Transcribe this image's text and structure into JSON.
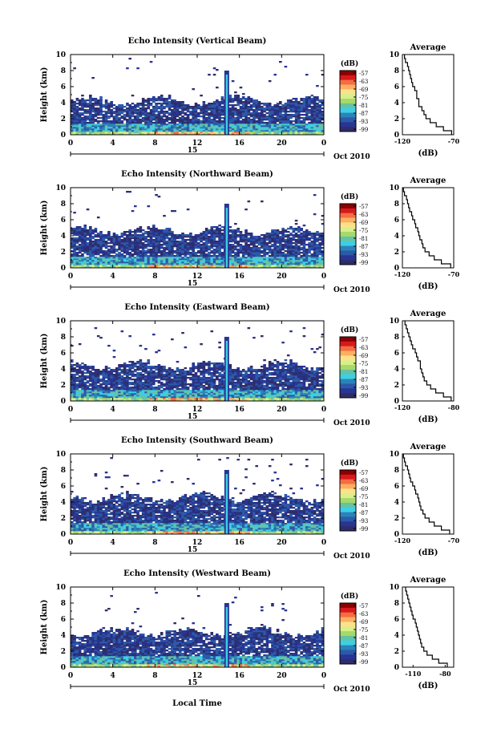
{
  "shared": {
    "colorbar_unit": "(dB)",
    "colorbar_ticks": [
      "-57",
      "-63",
      "-69",
      "-75",
      "-81",
      "-87",
      "-93",
      "-99"
    ],
    "colorbar_colors": [
      "#8b0000",
      "#d7191c",
      "#f46d43",
      "#fdae61",
      "#fee08b",
      "#d9ef8b",
      "#a6d96a",
      "#66c2a5",
      "#3ccfe6",
      "#2b83ba",
      "#2c5aa8",
      "#283593",
      "#2e2d6b"
    ],
    "date_label": "Oct 2010",
    "date_marker": "15",
    "xlabel": "Local Time",
    "avg_title": "Average",
    "avg_xlabel": "(dB)",
    "ylabel": "Height (km)"
  },
  "chart_data": [
    {
      "type": "heatmap",
      "title": "Echo Intensity (Vertical Beam)",
      "x_ticks": [
        "0",
        "4",
        "8",
        "12",
        "16",
        "20",
        "0"
      ],
      "y_ticks": [
        "0",
        "2",
        "4",
        "6",
        "8",
        "10"
      ],
      "xlim": [
        0,
        24
      ],
      "ylim": [
        0,
        10
      ],
      "spike_time_h": 14.8,
      "cloud_top_km": 4.2,
      "average_profile": {
        "x_ticks": [
          "-120",
          "-70"
        ],
        "xlim": [
          -120,
          -70
        ],
        "heights_km": [
          0,
          0.5,
          1,
          1.5,
          2,
          2.5,
          3,
          3.5,
          4,
          4.5,
          5,
          5.5,
          6,
          6.5,
          7,
          7.5,
          8,
          8.5,
          9,
          9.5
        ],
        "values_db": [
          -72,
          -80,
          -87,
          -93,
          -97,
          -99,
          -101,
          -104,
          -104,
          -106,
          -106,
          -108,
          -110,
          -111,
          -112,
          -113,
          -114,
          -115,
          -117,
          -118
        ]
      }
    },
    {
      "type": "heatmap",
      "title": "Echo Intensity (Northward Beam)",
      "x_ticks": [
        "0",
        "4",
        "8",
        "12",
        "16",
        "20",
        "0"
      ],
      "y_ticks": [
        "0",
        "2",
        "4",
        "6",
        "8",
        "10"
      ],
      "xlim": [
        0,
        24
      ],
      "ylim": [
        0,
        10
      ],
      "spike_time_h": 14.8,
      "cloud_top_km": 4.6,
      "average_profile": {
        "x_ticks": [
          "-120",
          "-70"
        ],
        "xlim": [
          -120,
          -70
        ],
        "heights_km": [
          0,
          0.5,
          1,
          1.5,
          2,
          2.5,
          3,
          3.5,
          4,
          4.5,
          5,
          5.5,
          6,
          6.5,
          7,
          7.5,
          8,
          8.5,
          9,
          9.5
        ],
        "values_db": [
          -73,
          -82,
          -89,
          -94,
          -98,
          -100,
          -101,
          -103,
          -104,
          -105,
          -107,
          -108,
          -110,
          -111,
          -113,
          -114,
          -115,
          -116,
          -118,
          -119
        ]
      }
    },
    {
      "type": "heatmap",
      "title": "Echo Intensity (Eastward Beam)",
      "x_ticks": [
        "0",
        "4",
        "8",
        "12",
        "16",
        "20",
        "0"
      ],
      "y_ticks": [
        "0",
        "2",
        "4",
        "6",
        "8",
        "10"
      ],
      "xlim": [
        0,
        24
      ],
      "ylim": [
        0,
        10
      ],
      "spike_time_h": 14.8,
      "cloud_top_km": 4.4,
      "average_profile": {
        "x_ticks": [
          "-120",
          "-80"
        ],
        "xlim": [
          -120,
          -80
        ],
        "heights_km": [
          0,
          0.5,
          1,
          1.5,
          2,
          2.5,
          3,
          3.5,
          4,
          4.5,
          5,
          5.5,
          6,
          6.5,
          7,
          7.5,
          8,
          8.5,
          9,
          9.5
        ],
        "values_db": [
          -82,
          -88,
          -94,
          -98,
          -101,
          -103,
          -104,
          -105,
          -106,
          -106,
          -108,
          -109,
          -110,
          -112,
          -113,
          -114,
          -115,
          -116,
          -117,
          -118
        ]
      }
    },
    {
      "type": "heatmap",
      "title": "Echo Intensity (Southward Beam)",
      "x_ticks": [
        "0",
        "4",
        "8",
        "12",
        "16",
        "20",
        "0"
      ],
      "y_ticks": [
        "0",
        "2",
        "4",
        "6",
        "8",
        "10"
      ],
      "xlim": [
        0,
        24
      ],
      "ylim": [
        0,
        10
      ],
      "spike_time_h": 14.8,
      "cloud_top_km": 4.5,
      "average_profile": {
        "x_ticks": [
          "-120",
          "-70"
        ],
        "xlim": [
          -120,
          -70
        ],
        "heights_km": [
          0,
          0.5,
          1,
          1.5,
          2,
          2.5,
          3,
          3.5,
          4,
          4.5,
          5,
          5.5,
          6,
          6.5,
          7,
          7.5,
          8,
          8.5,
          9,
          9.5
        ],
        "values_db": [
          -74,
          -82,
          -89,
          -94,
          -98,
          -100,
          -102,
          -103,
          -104,
          -105,
          -107,
          -108,
          -110,
          -112,
          -113,
          -114,
          -115,
          -117,
          -118,
          -119
        ]
      }
    },
    {
      "type": "heatmap",
      "title": "Echo Intensity (Westward Beam)",
      "x_ticks": [
        "0",
        "4",
        "8",
        "12",
        "16",
        "20",
        "0"
      ],
      "y_ticks": [
        "0",
        "2",
        "4",
        "6",
        "8",
        "10"
      ],
      "xlim": [
        0,
        24
      ],
      "ylim": [
        0,
        10
      ],
      "spike_time_h": 14.8,
      "cloud_top_km": 4.3,
      "average_profile": {
        "x_ticks": [
          "-110",
          "-80"
        ],
        "xlim": [
          -120,
          -72
        ],
        "heights_km": [
          0,
          0.5,
          1,
          1.5,
          2,
          2.5,
          3,
          3.5,
          4,
          4.5,
          5,
          5.5,
          6,
          6.5,
          7,
          7.5,
          8,
          8.5,
          9,
          9.5
        ],
        "values_db": [
          -78,
          -86,
          -92,
          -97,
          -100,
          -102,
          -103,
          -104,
          -105,
          -106,
          -107,
          -108,
          -110,
          -111,
          -112,
          -113,
          -114,
          -115,
          -116,
          -117
        ]
      }
    }
  ]
}
